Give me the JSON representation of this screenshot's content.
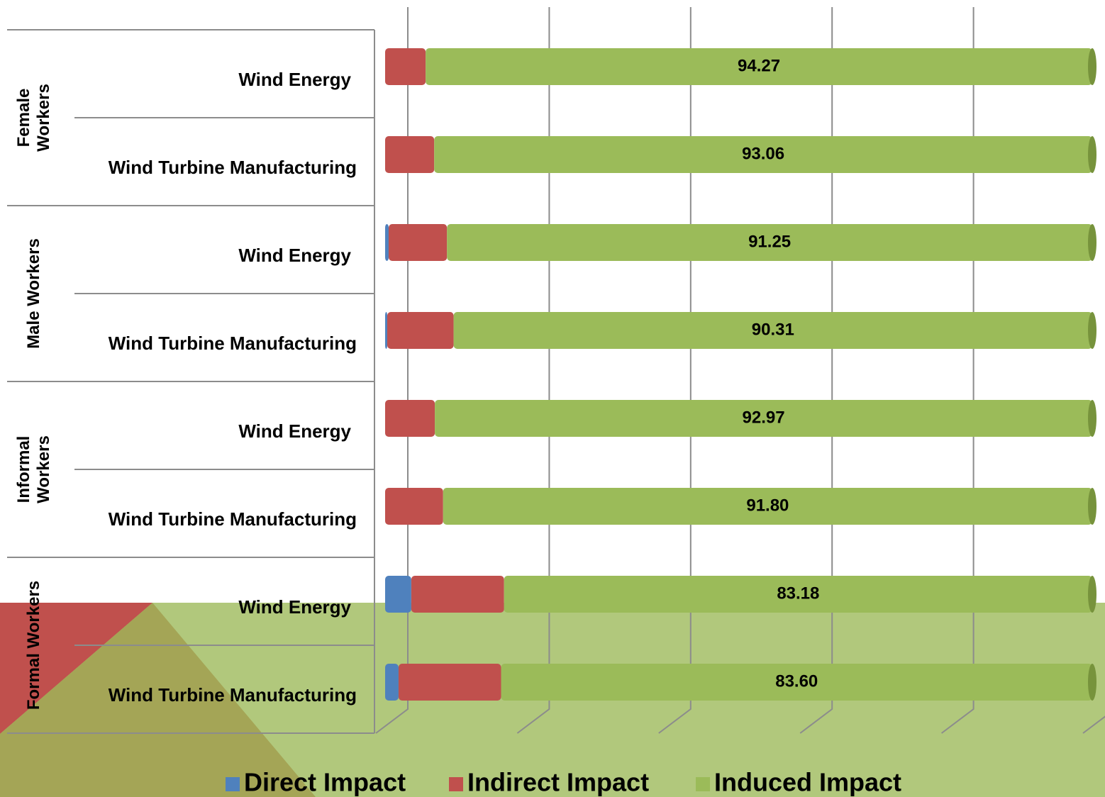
{
  "chart_data": {
    "type": "stacked_bar_100",
    "groups": [
      "Female Workers",
      "Male Workers",
      "Informal Workers",
      "Formal Workers"
    ],
    "categories": [
      "Wind Energy",
      "Wind Turbine Manufacturing",
      "Wind Energy",
      "Wind Turbine Manufacturing",
      "Wind Energy",
      "Wind Turbine Manufacturing",
      "Wind Energy",
      "Wind Turbine Manufacturing"
    ],
    "series": [
      {
        "name": "Direct Impact",
        "color": "#4f81bd",
        "values": [
          0,
          0,
          0.5,
          0.3,
          0,
          0,
          3.7,
          1.9
        ]
      },
      {
        "name": "Indirect Impact",
        "color": "#c0504d",
        "values": [
          5.73,
          6.94,
          8.25,
          9.39,
          7.03,
          8.2,
          13.12,
          14.5
        ]
      },
      {
        "name": "Induced Impact",
        "color": "#9bbb59",
        "values": [
          94.27,
          93.06,
          91.25,
          90.31,
          92.97,
          91.8,
          83.18,
          83.6
        ],
        "value_labels": [
          "94.27",
          "93.06",
          "91.25",
          "90.31",
          "92.97",
          "91.80",
          "83.18",
          "83.60"
        ]
      }
    ],
    "xlim": [
      0,
      100
    ],
    "xticks": [
      0,
      20,
      40,
      60,
      80,
      100
    ],
    "grid": true
  }
}
